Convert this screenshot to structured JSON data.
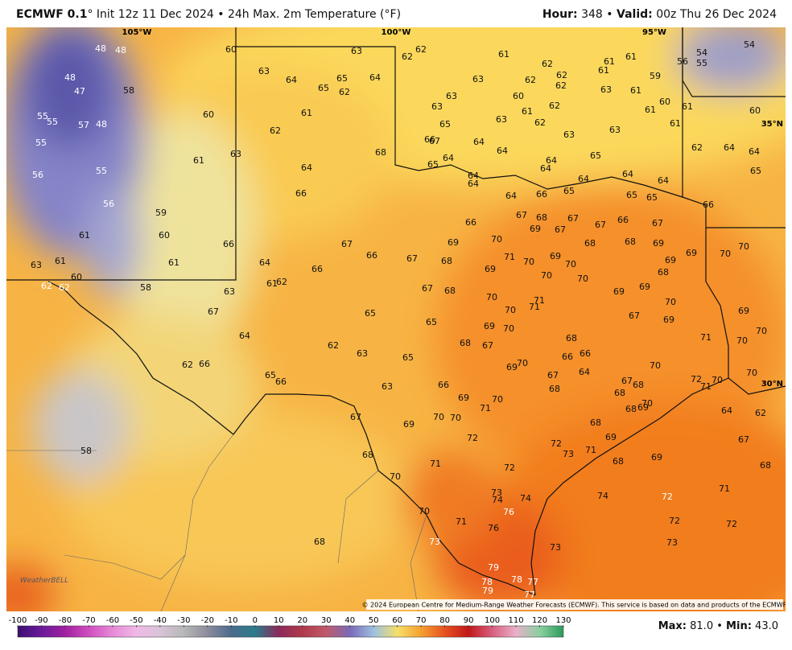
{
  "header": {
    "model": "ECMWF 0.1",
    "desc": "° Init 12z 11 Dec 2024 • 24h Max. 2m Temperature (°F)",
    "hour_label": "Hour:",
    "hour": "348",
    "separator": "•",
    "valid_label": "Valid:",
    "valid": "00z Thu 26 Dec 2024"
  },
  "map": {
    "lon_labels": [
      "105°W",
      "100°W",
      "95°W"
    ],
    "lat_labels": [
      "35°N",
      "30°N"
    ],
    "stations": [
      48,
      48,
      60,
      63,
      62,
      62,
      61,
      54,
      54,
      55,
      56,
      62,
      61,
      61,
      61,
      59,
      63,
      64,
      65,
      65,
      62,
      64,
      48,
      47,
      58,
      63,
      62,
      62,
      62,
      60,
      63,
      61,
      60,
      61,
      60,
      63,
      63,
      61,
      62,
      61,
      61,
      60,
      55,
      55,
      57,
      48,
      63,
      65,
      62,
      61,
      62,
      63,
      63,
      55,
      66,
      67,
      64,
      64,
      62,
      64,
      64,
      68,
      63,
      61,
      65,
      64,
      65,
      64,
      64,
      65,
      64,
      56,
      55,
      64,
      64,
      64,
      64,
      64,
      65,
      66,
      64,
      66,
      65,
      65,
      66,
      56,
      59,
      67,
      68,
      67,
      66,
      69,
      67,
      67,
      66,
      67,
      61,
      60,
      66,
      67,
      69,
      70,
      68,
      68,
      69,
      69,
      70,
      70,
      63,
      61,
      61,
      64,
      66,
      67,
      68,
      71,
      70,
      69,
      70,
      69,
      69,
      68,
      60,
      62,
      62,
      58,
      61,
      62,
      66,
      70,
      70,
      69,
      63,
      67,
      68,
      70,
      71,
      70,
      71,
      69,
      70,
      69,
      67,
      65,
      65,
      69,
      70,
      67,
      69,
      70,
      64,
      62,
      63,
      65,
      68,
      67,
      68,
      66,
      66,
      71,
      70,
      62,
      66,
      69,
      70,
      70,
      64,
      67,
      65,
      66,
      63,
      66,
      68,
      67,
      68,
      72,
      71,
      70,
      70,
      68,
      69,
      70,
      71,
      68,
      69,
      70,
      64,
      62,
      67,
      69,
      70,
      70,
      68,
      69,
      67,
      72,
      72,
      58,
      68,
      71,
      73,
      71,
      68,
      69,
      72,
      68,
      70,
      73,
      74,
      71,
      74,
      72,
      74,
      76,
      70,
      71,
      72,
      72,
      76,
      68,
      73,
      73,
      73,
      79,
      78,
      78,
      77,
      79,
      77
    ],
    "credit": "© 2024 European Centre for Medium-Range Weather Forecasts (ECMWF). This service is based on data and products of the ECMWF.",
    "logo": "WeatherBELL"
  },
  "colorbar": {
    "ticks": [
      -100,
      -90,
      -80,
      -70,
      -60,
      -50,
      -40,
      -30,
      -20,
      -10,
      0,
      10,
      20,
      30,
      40,
      50,
      60,
      70,
      80,
      90,
      100,
      110,
      120,
      130
    ]
  },
  "footer": {
    "max_label": "Max:",
    "max": "81.0",
    "separator": "•",
    "min_label": "Min:",
    "min": "43.0"
  }
}
